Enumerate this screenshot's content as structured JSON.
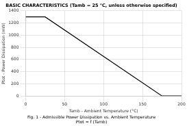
{
  "chart_data": {
    "type": "line",
    "title": "BASIC CHARACTERISTICS (Tamb = 25 °C, unless otherwise specified)",
    "x_label": "Tamb - Ambient Temperature (°C)",
    "y_label": "Ptot - Power Dissipation (mW)",
    "annotations": [
      "Fig. 1 - Admissible Power Dissipation vs. Ambient Temperature",
      "Ptot = f (Tamb)"
    ],
    "x": [
      0,
      25,
      175,
      200
    ],
    "values": [
      1300,
      1300,
      0,
      0
    ],
    "color": "#000000",
    "xlim": [
      0,
      200
    ],
    "ylim": [
      0,
      1400
    ],
    "xticks": [
      0,
      50,
      100,
      150,
      200
    ],
    "yticks": [
      0,
      200,
      400,
      600,
      800,
      1000,
      1200,
      1400
    ],
    "grid": true
  }
}
